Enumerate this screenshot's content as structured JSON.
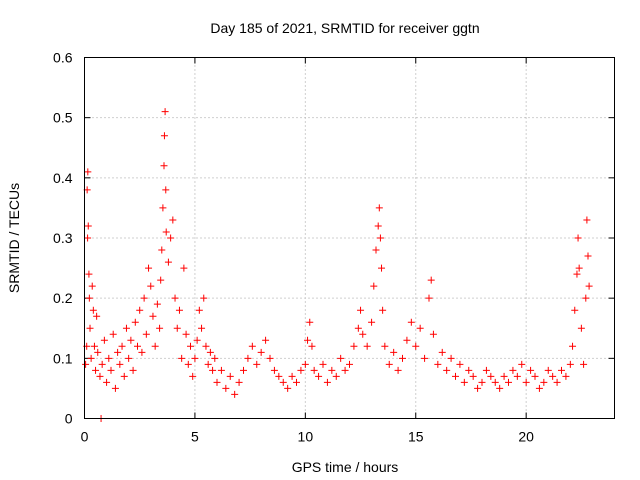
{
  "chart_data": {
    "type": "scatter",
    "title": "Day 185 of 2021, SRMTID for receiver ggtn",
    "xlabel": "GPS time / hours",
    "ylabel": "SRMTID / TECUs",
    "xlim": [
      0,
      24
    ],
    "ylim": [
      0,
      0.6
    ],
    "xticks": [
      0,
      5,
      10,
      15,
      20
    ],
    "yticks": [
      0,
      0.1,
      0.2,
      0.3,
      0.4,
      0.5,
      0.6
    ],
    "xtick_labels": [
      "0",
      "5",
      "10",
      "15",
      "20"
    ],
    "ytick_labels": [
      "0",
      "0.1",
      "0.2",
      "0.3",
      "0.4",
      "0.5",
      "0.6"
    ],
    "grid": true,
    "marker": "+",
    "color": "#ff0000",
    "series": [
      {
        "name": "SRMTID",
        "points": [
          [
            0.05,
            0.09
          ],
          [
            0.1,
            0.12
          ],
          [
            0.12,
            0.38
          ],
          [
            0.14,
            0.3
          ],
          [
            0.15,
            0.41
          ],
          [
            0.17,
            0.32
          ],
          [
            0.2,
            0.24
          ],
          [
            0.22,
            0.2
          ],
          [
            0.25,
            0.15
          ],
          [
            0.3,
            0.1
          ],
          [
            0.35,
            0.22
          ],
          [
            0.4,
            0.18
          ],
          [
            0.45,
            0.12
          ],
          [
            0.5,
            0.08
          ],
          [
            0.55,
            0.17
          ],
          [
            0.6,
            0.11
          ],
          [
            0.7,
            0.07
          ],
          [
            0.8,
            0.09
          ],
          [
            0.9,
            0.13
          ],
          [
            1.0,
            0.06
          ],
          [
            1.1,
            0.1
          ],
          [
            1.2,
            0.08
          ],
          [
            1.3,
            0.14
          ],
          [
            1.4,
            0.05
          ],
          [
            1.5,
            0.11
          ],
          [
            1.6,
            0.09
          ],
          [
            1.7,
            0.12
          ],
          [
            1.8,
            0.07
          ],
          [
            1.9,
            0.15
          ],
          [
            2.0,
            0.1
          ],
          [
            2.1,
            0.13
          ],
          [
            2.2,
            0.08
          ],
          [
            2.3,
            0.16
          ],
          [
            2.4,
            0.12
          ],
          [
            2.5,
            0.18
          ],
          [
            2.6,
            0.11
          ],
          [
            2.7,
            0.2
          ],
          [
            2.8,
            0.14
          ],
          [
            2.9,
            0.25
          ],
          [
            3.0,
            0.22
          ],
          [
            3.1,
            0.17
          ],
          [
            3.2,
            0.12
          ],
          [
            3.3,
            0.19
          ],
          [
            3.4,
            0.15
          ],
          [
            3.45,
            0.23
          ],
          [
            3.5,
            0.28
          ],
          [
            3.55,
            0.35
          ],
          [
            3.6,
            0.42
          ],
          [
            3.62,
            0.47
          ],
          [
            3.65,
            0.51
          ],
          [
            3.68,
            0.38
          ],
          [
            3.7,
            0.31
          ],
          [
            3.8,
            0.26
          ],
          [
            3.9,
            0.3
          ],
          [
            4.0,
            0.33
          ],
          [
            4.1,
            0.2
          ],
          [
            4.2,
            0.15
          ],
          [
            4.3,
            0.18
          ],
          [
            4.4,
            0.1
          ],
          [
            4.5,
            0.25
          ],
          [
            4.6,
            0.14
          ],
          [
            4.7,
            0.09
          ],
          [
            4.8,
            0.12
          ],
          [
            4.9,
            0.07
          ],
          [
            5.0,
            0.1
          ],
          [
            5.1,
            0.13
          ],
          [
            5.2,
            0.18
          ],
          [
            5.3,
            0.15
          ],
          [
            5.4,
            0.2
          ],
          [
            5.5,
            0.12
          ],
          [
            5.6,
            0.09
          ],
          [
            5.7,
            0.11
          ],
          [
            5.8,
            0.08
          ],
          [
            5.9,
            0.1
          ],
          [
            6.0,
            0.06
          ],
          [
            6.2,
            0.08
          ],
          [
            6.4,
            0.05
          ],
          [
            6.6,
            0.07
          ],
          [
            6.8,
            0.04
          ],
          [
            7.0,
            0.06
          ],
          [
            7.2,
            0.08
          ],
          [
            7.4,
            0.1
          ],
          [
            7.6,
            0.12
          ],
          [
            7.8,
            0.09
          ],
          [
            8.0,
            0.11
          ],
          [
            8.2,
            0.13
          ],
          [
            8.4,
            0.1
          ],
          [
            8.6,
            0.08
          ],
          [
            8.8,
            0.07
          ],
          [
            9.0,
            0.06
          ],
          [
            9.2,
            0.05
          ],
          [
            9.4,
            0.07
          ],
          [
            9.6,
            0.06
          ],
          [
            9.8,
            0.08
          ],
          [
            10.0,
            0.09
          ],
          [
            10.1,
            0.13
          ],
          [
            10.2,
            0.16
          ],
          [
            10.3,
            0.12
          ],
          [
            10.4,
            0.08
          ],
          [
            10.6,
            0.07
          ],
          [
            10.8,
            0.09
          ],
          [
            11.0,
            0.06
          ],
          [
            11.2,
            0.08
          ],
          [
            11.4,
            0.07
          ],
          [
            11.6,
            0.1
          ],
          [
            11.8,
            0.08
          ],
          [
            12.0,
            0.09
          ],
          [
            12.2,
            0.12
          ],
          [
            12.4,
            0.15
          ],
          [
            12.5,
            0.18
          ],
          [
            12.6,
            0.14
          ],
          [
            12.8,
            0.12
          ],
          [
            13.0,
            0.16
          ],
          [
            13.1,
            0.22
          ],
          [
            13.2,
            0.28
          ],
          [
            13.3,
            0.32
          ],
          [
            13.35,
            0.35
          ],
          [
            13.4,
            0.3
          ],
          [
            13.45,
            0.25
          ],
          [
            13.5,
            0.18
          ],
          [
            13.6,
            0.12
          ],
          [
            13.8,
            0.09
          ],
          [
            14.0,
            0.11
          ],
          [
            14.2,
            0.08
          ],
          [
            14.4,
            0.1
          ],
          [
            14.6,
            0.13
          ],
          [
            14.8,
            0.16
          ],
          [
            15.0,
            0.12
          ],
          [
            15.2,
            0.15
          ],
          [
            15.4,
            0.1
          ],
          [
            15.6,
            0.2
          ],
          [
            15.7,
            0.23
          ],
          [
            15.8,
            0.14
          ],
          [
            16.0,
            0.09
          ],
          [
            16.2,
            0.11
          ],
          [
            16.4,
            0.08
          ],
          [
            16.6,
            0.1
          ],
          [
            16.8,
            0.07
          ],
          [
            17.0,
            0.09
          ],
          [
            17.2,
            0.06
          ],
          [
            17.4,
            0.08
          ],
          [
            17.6,
            0.07
          ],
          [
            17.8,
            0.05
          ],
          [
            18.0,
            0.06
          ],
          [
            18.2,
            0.08
          ],
          [
            18.4,
            0.07
          ],
          [
            18.6,
            0.06
          ],
          [
            18.8,
            0.05
          ],
          [
            19.0,
            0.07
          ],
          [
            19.2,
            0.06
          ],
          [
            19.4,
            0.08
          ],
          [
            19.6,
            0.07
          ],
          [
            19.8,
            0.09
          ],
          [
            20.0,
            0.06
          ],
          [
            20.2,
            0.08
          ],
          [
            20.4,
            0.07
          ],
          [
            20.6,
            0.05
          ],
          [
            20.8,
            0.06
          ],
          [
            21.0,
            0.08
          ],
          [
            21.2,
            0.07
          ],
          [
            21.4,
            0.06
          ],
          [
            21.6,
            0.08
          ],
          [
            21.8,
            0.07
          ],
          [
            22.0,
            0.09
          ],
          [
            22.1,
            0.12
          ],
          [
            22.2,
            0.18
          ],
          [
            22.3,
            0.24
          ],
          [
            22.35,
            0.3
          ],
          [
            22.4,
            0.25
          ],
          [
            22.5,
            0.15
          ],
          [
            22.6,
            0.09
          ],
          [
            22.7,
            0.2
          ],
          [
            22.75,
            0.33
          ],
          [
            22.8,
            0.27
          ],
          [
            22.85,
            0.22
          ],
          [
            0.75,
            0.0
          ]
        ]
      }
    ]
  }
}
